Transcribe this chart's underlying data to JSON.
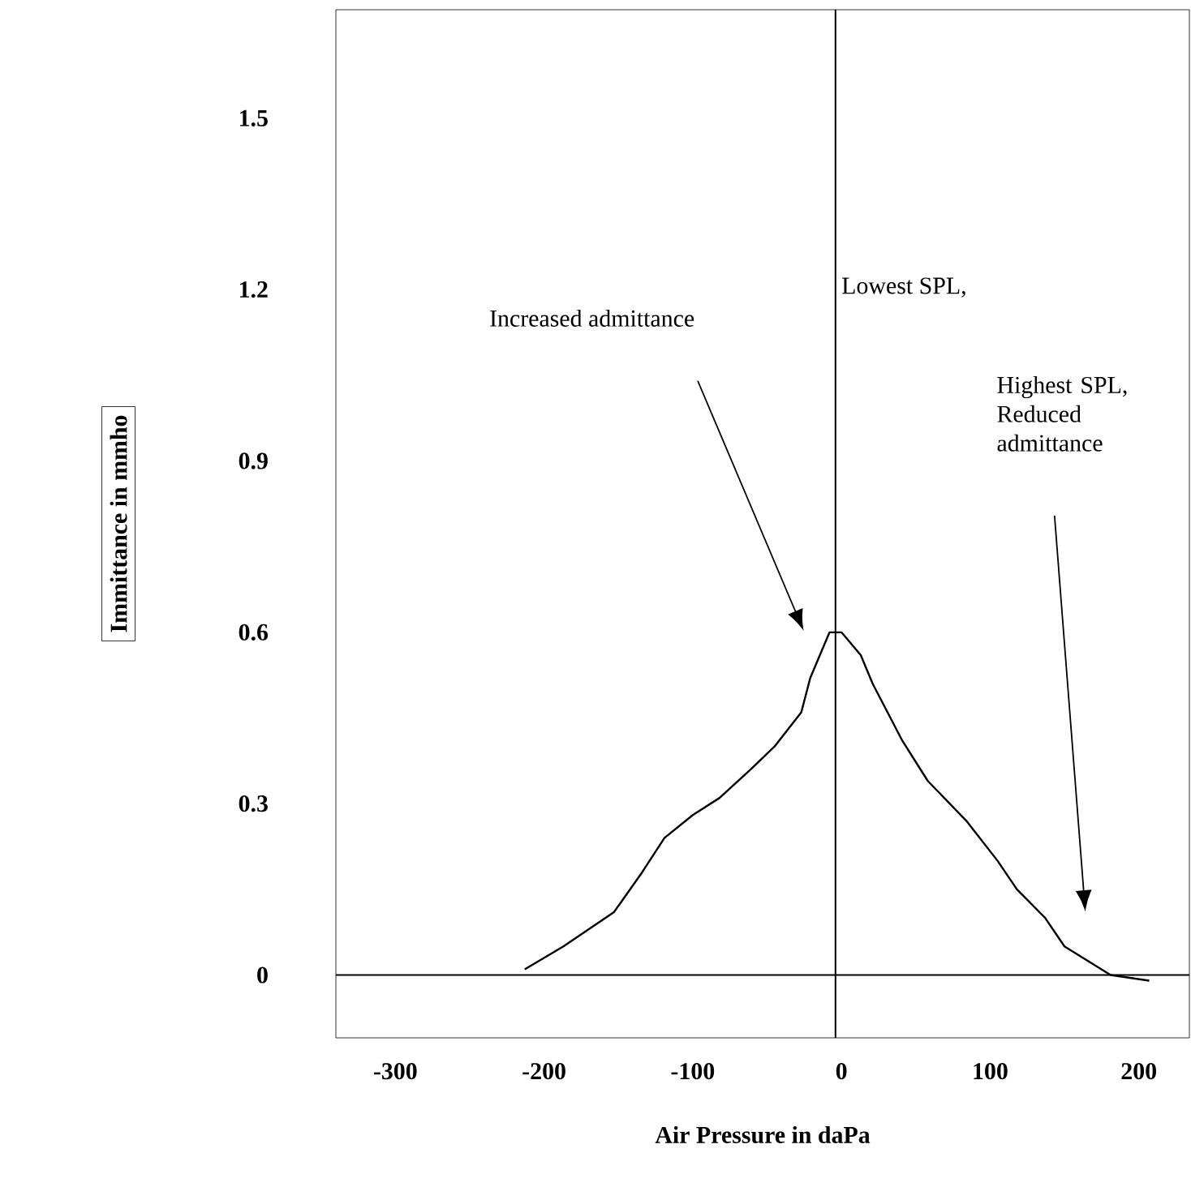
{
  "chart_data": {
    "type": "line",
    "xlabel": "Air Pressure in daPa",
    "ylabel": "Immittance in mmho",
    "xlim": [
      -340,
      234
    ],
    "ylim": [
      -0.11,
      1.69
    ],
    "xticks": [
      -300,
      -200,
      -100,
      0,
      100,
      200
    ],
    "yticks": [
      0,
      0.3,
      0.6,
      0.9,
      1.2,
      1.5
    ],
    "grid": false,
    "marker": "none",
    "line_style": "solid",
    "series": [
      {
        "color": "#000000",
        "x": [
          -213,
          -187,
          -153,
          -134,
          -119,
          -100,
          -82,
          -61,
          -45,
          -27,
          -21,
          -8,
          0,
          13,
          21,
          41,
          58,
          84,
          105,
          118,
          137,
          150,
          181,
          207
        ],
        "values": [
          0.01,
          0.05,
          0.11,
          0.18,
          0.24,
          0.28,
          0.31,
          0.36,
          0.4,
          0.46,
          0.52,
          0.6,
          0.6,
          0.56,
          0.51,
          0.41,
          0.34,
          0.27,
          0.2,
          0.15,
          0.1,
          0.05,
          0.0,
          -0.01
        ]
      }
    ],
    "ref_lines": [
      {
        "axis": "x",
        "value": -4,
        "color": "#000000"
      },
      {
        "axis": "y",
        "value": 0,
        "color": "#000000"
      }
    ],
    "annotations": [
      "Lowest SPL,",
      "Increased admittance",
      "Highest SPL, Reduced admittance"
    ]
  }
}
